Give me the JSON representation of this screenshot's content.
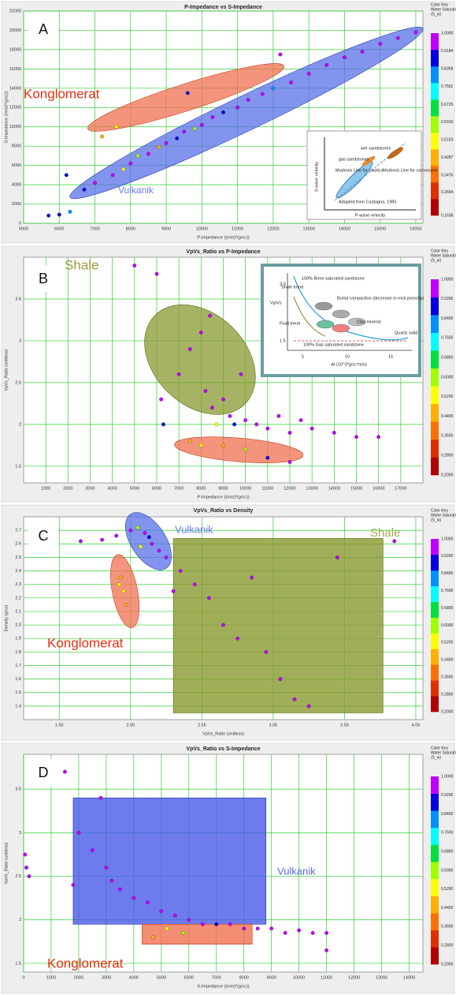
{
  "chart_data": [
    {
      "type": "scatter",
      "panel_label": "A",
      "title": "P-Impedance vs S-Impedance",
      "xlabel": "P-Impedance ((m/s)*(g/cc))",
      "ylabel": "S-Impedance ((m/s)*(g/cc))",
      "xlim": [
        5000,
        16200
      ],
      "ylim": [
        0,
        22000
      ],
      "xticks": [
        5000,
        6000,
        7000,
        8000,
        9000,
        10000,
        11000,
        12000,
        13000,
        14000,
        15000,
        16000
      ],
      "yticks": [
        0,
        2000,
        4000,
        6000,
        8000,
        10000,
        12000,
        14000,
        16000,
        18000,
        20000,
        22000
      ],
      "grid": true,
      "x": [
        5700,
        6000,
        6300,
        6700,
        7000,
        7500,
        7800,
        8000,
        8200,
        8500,
        8800,
        9000,
        9300,
        9500,
        9800,
        10000,
        10300,
        10600,
        11000,
        11300,
        11700,
        12000,
        12500,
        13000,
        13500,
        14000,
        14500,
        15000,
        15500,
        16000,
        7200,
        7600,
        12200,
        9600,
        6200
      ],
      "values": [
        800,
        900,
        1200,
        3500,
        4200,
        5000,
        5600,
        6200,
        7000,
        7200,
        7900,
        8300,
        8800,
        9500,
        9800,
        10200,
        11000,
        11500,
        12000,
        12800,
        13400,
        14000,
        14600,
        15500,
        16400,
        17200,
        17800,
        18600,
        19200,
        19800,
        9000,
        10000,
        17500,
        13500,
        5000
      ],
      "sw": [
        0.9,
        0.9,
        0.85,
        0.95,
        1,
        1,
        0.5,
        1,
        0.55,
        1,
        0.45,
        1,
        0.9,
        1,
        0.6,
        1,
        1,
        0.9,
        1,
        1,
        1,
        0.8,
        1,
        1,
        1,
        1,
        1,
        1,
        1,
        1,
        0.4,
        0.5,
        1,
        0.95,
        0.9
      ],
      "colorbar_title": [
        "Color Key",
        "Water Saturatio",
        "(S_w)"
      ],
      "colorbar_lim": [
        0.1638,
        1
      ],
      "colorbar_ticks": [
        0.1638,
        0.2694,
        0.3476,
        0.4287,
        0.5103,
        0.5916,
        0.6725,
        0.7551,
        0.8368,
        0.9184,
        {
          "value": 1,
          "label": "1.0000"
        }
      ],
      "colormap": [
        "#b00000",
        "#e03000",
        "#ff7000",
        "#ffb000",
        "#ffff00",
        "#a0ff00",
        "#00e040",
        "#00ffff",
        "#0090ff",
        "#0000e0",
        "#c000ff"
      ],
      "regions": [
        {
          "label": "Konglomerat",
          "color": "#e83010"
        },
        {
          "label": "Vulkanik",
          "color": "#6a7cf0"
        }
      ],
      "inset": {
        "texts": [
          "wet sandstones",
          "gas sandstones",
          "Mudrock Line for clastics",
          "Mudrock Line for carbonates",
          "Adapted from Castagna, 1985",
          "S-wave velocity",
          "P-wave velocity"
        ]
      }
    },
    {
      "type": "scatter",
      "panel_label": "B",
      "title": "VpVs_Ratio vs P-Impedance",
      "xlabel": "P-Impedance ((m/s)*(g/cc))",
      "ylabel": "VpVs_Ratio (unitless)",
      "xlim": [
        0,
        18000
      ],
      "ylim": [
        1.3,
        4
      ],
      "xticks": [
        1000,
        2000,
        3000,
        4000,
        5000,
        6000,
        7000,
        8000,
        9000,
        10000,
        11000,
        12000,
        13000,
        14000,
        15000,
        16000,
        17000
      ],
      "yticks": [
        1.5,
        2,
        2.5,
        3,
        3.5
      ],
      "grid": true,
      "x": [
        5000,
        6000,
        6200,
        6300,
        7000,
        7500,
        8000,
        8200,
        8500,
        8700,
        9000,
        9300,
        9500,
        10000,
        10500,
        11000,
        11500,
        12000,
        12500,
        13000,
        14000,
        15000,
        16000,
        7500,
        8000,
        9000,
        10000,
        11000,
        12000,
        8400,
        9800
      ],
      "values": [
        3.9,
        3.8,
        2.3,
        2,
        2.6,
        2.9,
        3.1,
        2.4,
        2.2,
        2,
        2.3,
        2.1,
        2,
        2.05,
        2,
        1.95,
        2.1,
        1.9,
        2.05,
        1.95,
        1.9,
        1.85,
        1.85,
        1.8,
        1.75,
        1.75,
        1.7,
        1.6,
        1.55,
        3.3,
        2.6
      ],
      "sw": [
        1,
        1,
        1,
        0.9,
        1,
        1,
        1,
        1,
        1,
        0.5,
        1,
        1,
        0.9,
        1,
        1,
        1,
        1,
        1,
        1,
        1,
        1,
        1,
        1,
        0.45,
        0.55,
        0.4,
        0.6,
        0.9,
        1,
        1,
        1
      ],
      "colorbar_title": [
        "Color Key",
        "Water Saturatio",
        "(S_w)"
      ],
      "colorbar_lim": [
        0.2,
        1
      ],
      "colorbar_ticks": [
        {
          "value": 0.2,
          "label": "0.2000"
        },
        {
          "value": 0.28,
          "label": "0.2800"
        },
        {
          "value": 0.36,
          "label": "0.3600"
        },
        {
          "value": 0.44,
          "label": "0.4400"
        },
        {
          "value": 0.52,
          "label": "0.5200"
        },
        {
          "value": 0.6,
          "label": "0.6000"
        },
        {
          "value": 0.68,
          "label": "0.6800"
        },
        {
          "value": 0.76,
          "label": "0.7600"
        },
        {
          "value": 0.84,
          "label": "0.8400"
        },
        {
          "value": 0.92,
          "label": "0.9200"
        },
        {
          "value": 1,
          "label": "1.0000"
        }
      ],
      "colormap": [
        "#b00000",
        "#e03000",
        "#ff7000",
        "#ffb000",
        "#ffff00",
        "#a0ff00",
        "#00e040",
        "#00ffff",
        "#0090ff",
        "#0000e0",
        "#c000ff"
      ],
      "regions": [
        {
          "label": "Shale",
          "color": "#9a9a40"
        }
      ],
      "inset": {
        "texts": [
          "100% Brine saturated sandstone",
          "Shale trend",
          "Burial compaction (decrease in rock porosity)",
          "Clay mineral",
          "Fluid trend",
          "Quartz solid",
          "100% Gas saturated sandstone",
          "Vp/Vs",
          "AI (10^3*g/cc*m/s)",
          "3.0",
          "1.5",
          "5",
          "10",
          "15"
        ]
      }
    },
    {
      "type": "scatter",
      "panel_label": "C",
      "title": "VpVs_Ratio vs Density",
      "xlabel": "VpVs_Ratio (unitless)",
      "ylabel": "Density (g/cc)",
      "xlim": [
        1.3,
        4.1
      ],
      "ylim": [
        1.3,
        2.8
      ],
      "xticks": [
        1.55,
        2.05,
        2.55,
        3.05,
        3.55,
        4.05
      ],
      "yticks": [
        1.4,
        1.5,
        1.6,
        1.7,
        1.8,
        1.9,
        {
          "value": 2,
          "label": "2.0"
        },
        2.1,
        2.2,
        2.3,
        2.4,
        2.5,
        2.6,
        2.7
      ],
      "grid": true,
      "x": [
        1.4,
        1.5,
        1.7,
        1.85,
        1.95,
        2.05,
        2.1,
        2.15,
        2.2,
        2.25,
        2.12,
        2.18,
        1.98,
        2,
        2.02,
        1.97,
        2.3,
        2.4,
        2.5,
        2.6,
        2.7,
        2.8,
        3,
        3.1,
        3.2,
        3.3,
        3.9,
        2.35,
        2.9,
        3.5
      ],
      "values": [
        2.64,
        2.65,
        2.62,
        2.63,
        2.66,
        2.7,
        2.72,
        2.68,
        2.6,
        2.55,
        2.58,
        2.65,
        2.35,
        2.25,
        2.15,
        2.3,
        2.5,
        2.4,
        2.3,
        2.2,
        2,
        1.9,
        1.8,
        1.6,
        1.45,
        1.4,
        2.62,
        2.25,
        2.35,
        2.5
      ],
      "sw": [
        1,
        1,
        1,
        1,
        1,
        1,
        0.6,
        1,
        1,
        1,
        0.5,
        0.9,
        0.45,
        0.5,
        0.4,
        0.55,
        1,
        1,
        1,
        1,
        1,
        1,
        1,
        1,
        1,
        1,
        1,
        1,
        1,
        1
      ],
      "colorbar_title": [
        "Color Key",
        "Water Saturatio",
        "(S_w)"
      ],
      "colorbar_lim": [
        0.2,
        1
      ],
      "colorbar_ticks": [
        {
          "value": 0.2,
          "label": "0.2000"
        },
        {
          "value": 0.28,
          "label": "0.2800"
        },
        {
          "value": 0.36,
          "label": "0.3600"
        },
        {
          "value": 0.44,
          "label": "0.4400"
        },
        {
          "value": 0.52,
          "label": "0.5200"
        },
        {
          "value": 0.6,
          "label": "0.6000"
        },
        {
          "value": 0.68,
          "label": "0.6800"
        },
        {
          "value": 0.76,
          "label": "0.7600"
        },
        {
          "value": 0.84,
          "label": "0.8400"
        },
        {
          "value": 0.92,
          "label": "0.9200"
        },
        {
          "value": 1,
          "label": "1.0000"
        }
      ],
      "colormap": [
        "#b00000",
        "#e03000",
        "#ff7000",
        "#ffb000",
        "#ffff00",
        "#a0ff00",
        "#00e040",
        "#00ffff",
        "#0090ff",
        "#0000e0",
        "#c000ff"
      ],
      "regions": [
        {
          "label": "Vulkanik",
          "color": "#6a7cf0"
        },
        {
          "label": "Konglomerat",
          "color": "#e83010"
        },
        {
          "label": "Shale",
          "color": "#a8a850"
        }
      ]
    },
    {
      "type": "scatter",
      "panel_label": "D",
      "title": "VpVs_Ratio vs S-Impedance",
      "xlabel": "S-Impedance ((m/s)*(g/cc))",
      "ylabel": "VpVs_Ratio (unitless)",
      "xlim": [
        0,
        14500
      ],
      "ylim": [
        1.4,
        3.9
      ],
      "xticks": [
        0,
        1000,
        2000,
        3000,
        4000,
        5000,
        6000,
        7000,
        8000,
        9000,
        10000,
        11000,
        12000,
        13000,
        14000
      ],
      "yticks": [
        1.5,
        2,
        2.5,
        3,
        3.5
      ],
      "grid": true,
      "x": [
        50,
        100,
        200,
        1500,
        1800,
        2000,
        2500,
        3000,
        3200,
        3500,
        4000,
        4500,
        5000,
        5200,
        5500,
        5800,
        6000,
        6500,
        7000,
        7500,
        8000,
        8500,
        9000,
        9500,
        10000,
        10500,
        11000,
        11000,
        2800,
        4700
      ],
      "values": [
        2.75,
        2.6,
        2.5,
        3.7,
        2.4,
        3,
        2.8,
        2.6,
        2.45,
        2.35,
        2.25,
        2.2,
        2.1,
        1.9,
        2.05,
        1.85,
        2,
        1.95,
        1.95,
        1.95,
        1.9,
        1.9,
        1.9,
        1.85,
        1.88,
        1.85,
        1.85,
        1.65,
        3.4,
        1.8
      ],
      "sw": [
        1,
        1,
        1,
        1,
        1,
        1,
        1,
        1,
        1,
        1,
        1,
        1,
        1,
        0.5,
        1,
        0.6,
        1,
        1,
        0.9,
        1,
        1,
        1,
        1,
        1,
        1,
        1,
        1,
        1,
        1,
        0.45
      ],
      "colorbar_title": [
        "Color Key",
        "Water Saturatio",
        "(S_w)"
      ],
      "colorbar_lim": [
        0.2,
        1
      ],
      "colorbar_ticks": [
        {
          "value": 0.2,
          "label": "0.2000"
        },
        {
          "value": 0.28,
          "label": "0.2800"
        },
        {
          "value": 0.36,
          "label": "0.3600"
        },
        {
          "value": 0.44,
          "label": "0.4400"
        },
        {
          "value": 0.52,
          "label": "0.5200"
        },
        {
          "value": 0.6,
          "label": "0.6000"
        },
        {
          "value": 0.68,
          "label": "0.6800"
        },
        {
          "value": 0.76,
          "label": "0.7600"
        },
        {
          "value": 0.84,
          "label": "0.8400"
        },
        {
          "value": 0.92,
          "label": "0.9200"
        },
        {
          "value": 1,
          "label": "1.0000"
        }
      ],
      "colormap": [
        "#b00000",
        "#e03000",
        "#ff7000",
        "#ffb000",
        "#ffff00",
        "#a0ff00",
        "#00e040",
        "#00ffff",
        "#0090ff",
        "#0000e0",
        "#c000ff"
      ],
      "regions": [
        {
          "label": "Vulkanik",
          "color": "#5a6ae8"
        },
        {
          "label": "Konglomerat",
          "color": "#e83010"
        }
      ]
    }
  ]
}
